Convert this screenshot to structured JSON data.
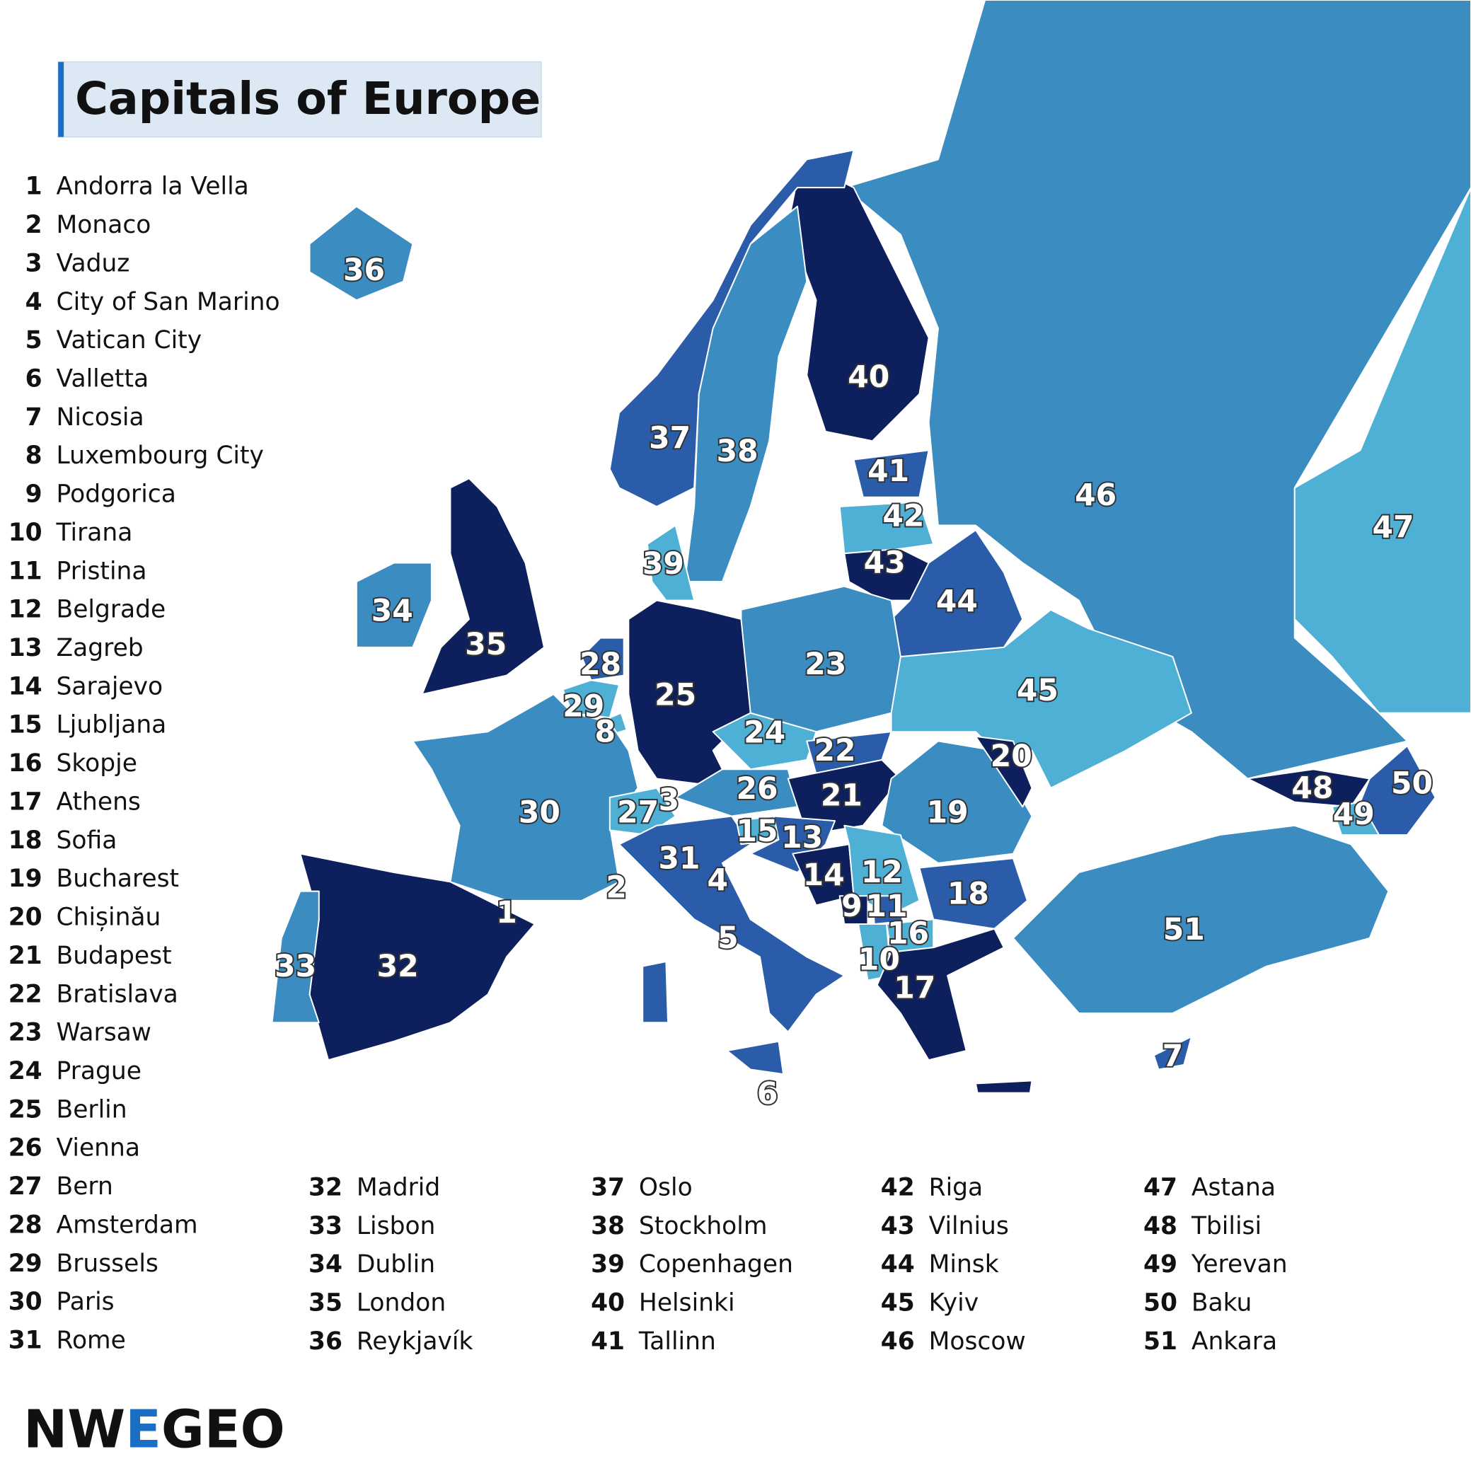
{
  "title": "Capitals of Europe",
  "logo": [
    "NW",
    "E",
    "GEO"
  ],
  "capitals": [
    {
      "number": 1,
      "name": "Andorra la Vella"
    },
    {
      "number": 2,
      "name": "Monaco"
    },
    {
      "number": 3,
      "name": "Vaduz"
    },
    {
      "number": 4,
      "name": "City of San Marino"
    },
    {
      "number": 5,
      "name": "Vatican City"
    },
    {
      "number": 6,
      "name": "Valletta"
    },
    {
      "number": 7,
      "name": "Nicosia"
    },
    {
      "number": 8,
      "name": "Luxembourg City"
    },
    {
      "number": 9,
      "name": "Podgorica"
    },
    {
      "number": 10,
      "name": "Tirana"
    },
    {
      "number": 11,
      "name": "Pristina"
    },
    {
      "number": 12,
      "name": "Belgrade"
    },
    {
      "number": 13,
      "name": "Zagreb"
    },
    {
      "number": 14,
      "name": "Sarajevo"
    },
    {
      "number": 15,
      "name": "Ljubljana"
    },
    {
      "number": 16,
      "name": "Skopje"
    },
    {
      "number": 17,
      "name": "Athens"
    },
    {
      "number": 18,
      "name": "Sofia"
    },
    {
      "number": 19,
      "name": "Bucharest"
    },
    {
      "number": 20,
      "name": "Chișinău"
    },
    {
      "number": 21,
      "name": "Budapest"
    },
    {
      "number": 22,
      "name": "Bratislava"
    },
    {
      "number": 23,
      "name": "Warsaw"
    },
    {
      "number": 24,
      "name": "Prague"
    },
    {
      "number": 25,
      "name": "Berlin"
    },
    {
      "number": 26,
      "name": "Vienna"
    },
    {
      "number": 27,
      "name": "Bern"
    },
    {
      "number": 28,
      "name": "Amsterdam"
    },
    {
      "number": 29,
      "name": "Brussels"
    },
    {
      "number": 30,
      "name": "Paris"
    },
    {
      "number": 31,
      "name": "Rome"
    },
    {
      "number": 32,
      "name": "Madrid"
    },
    {
      "number": 33,
      "name": "Lisbon"
    },
    {
      "number": 34,
      "name": "Dublin"
    },
    {
      "number": 35,
      "name": "London"
    },
    {
      "number": 36,
      "name": "Reykjavík"
    },
    {
      "number": 37,
      "name": "Oslo"
    },
    {
      "number": 38,
      "name": "Stockholm"
    },
    {
      "number": 39,
      "name": "Copenhagen"
    },
    {
      "number": 40,
      "name": "Helsinki"
    },
    {
      "number": 41,
      "name": "Tallinn"
    },
    {
      "number": 42,
      "name": "Riga"
    },
    {
      "number": 43,
      "name": "Vilnius"
    },
    {
      "number": 44,
      "name": "Minsk"
    },
    {
      "number": 45,
      "name": "Kyiv"
    },
    {
      "number": 46,
      "name": "Moscow"
    },
    {
      "number": 47,
      "name": "Astana"
    },
    {
      "number": 48,
      "name": "Tbilisi"
    },
    {
      "number": 49,
      "name": "Yerevan"
    },
    {
      "number": 50,
      "name": "Baku"
    },
    {
      "number": 51,
      "name": "Ankara"
    }
  ]
}
